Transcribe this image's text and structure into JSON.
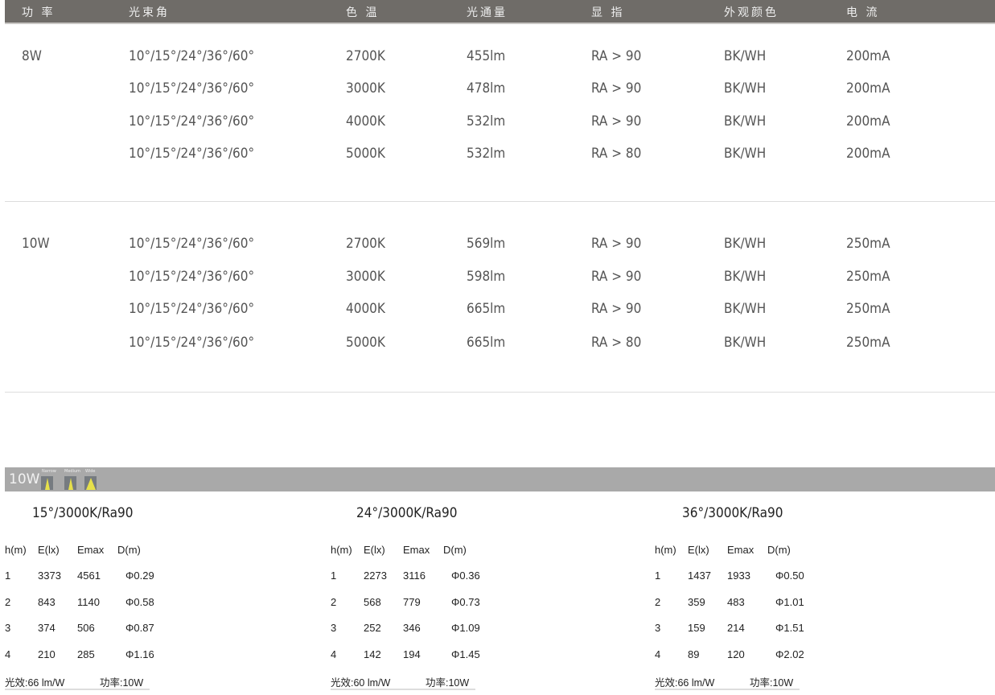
{
  "header": [
    "功 率",
    "光束角",
    "色 温",
    "光通量",
    "显 指",
    "外观颜色",
    "电 流"
  ],
  "groups": [
    {
      "power": "8W",
      "rows": [
        [
          "10°/15°/24°/36°/60°",
          "2700K",
          "455lm",
          "RA > 90",
          "BK/WH",
          "200mA"
        ],
        [
          "10°/15°/24°/36°/60°",
          "3000K",
          "478lm",
          "RA > 90",
          "BK/WH",
          "200mA"
        ],
        [
          "10°/15°/24°/36°/60°",
          "4000K",
          "532lm",
          "RA > 90",
          "BK/WH",
          "200mA"
        ],
        [
          "10°/15°/24°/36°/60°",
          "5000K",
          "532lm",
          "RA > 80",
          "BK/WH",
          "200mA"
        ]
      ]
    },
    {
      "power": "10W",
      "rows": [
        [
          "10°/15°/24°/36°/60°",
          "2700K",
          "569lm",
          "RA > 90",
          "BK/WH",
          "250mA"
        ],
        [
          "10°/15°/24°/36°/60°",
          "3000K",
          "598lm",
          "RA > 90",
          "BK/WH",
          "250mA"
        ],
        [
          "10°/15°/24°/36°/60°",
          "4000K",
          "665lm",
          "RA > 90",
          "BK/WH",
          "250mA"
        ],
        [
          "10°/15°/24°/36°/60°",
          "5000K",
          "665lm",
          "RA > 80",
          "BK/WH",
          "250mA"
        ]
      ]
    }
  ],
  "section": {
    "power": "10W",
    "beams": [
      "Narrow",
      "Medium",
      "Wide"
    ],
    "beam_color": "#e6e04a"
  },
  "blocks": [
    {
      "title": "15°/3000K/Ra90",
      "cols": [
        "h(m)",
        "E(lx)",
        "Emax",
        "D(m)"
      ],
      "rows": [
        [
          "1",
          "3373",
          "4561",
          "Φ0.29"
        ],
        [
          "2",
          "843",
          "1140",
          "Φ0.58"
        ],
        [
          "3",
          "374",
          "506",
          "Φ0.87"
        ],
        [
          "4",
          "210",
          "285",
          "Φ1.16"
        ]
      ],
      "efficacy": "光效:66 lm/W",
      "power": "功率:10W"
    },
    {
      "title": "24°/3000K/Ra90",
      "cols": [
        "h(m)",
        "E(lx)",
        "Emax",
        "D(m)"
      ],
      "rows": [
        [
          "1",
          "2273",
          "3116",
          "Φ0.36"
        ],
        [
          "2",
          "568",
          "779",
          "Φ0.73"
        ],
        [
          "3",
          "252",
          "346",
          "Φ1.09"
        ],
        [
          "4",
          "142",
          "194",
          "Φ1.45"
        ]
      ],
      "efficacy": "光效:60 lm/W",
      "power": "功率:10W"
    },
    {
      "title": "36°/3000K/Ra90",
      "cols": [
        "h(m)",
        "E(lx)",
        "Emax",
        "D(m)"
      ],
      "rows": [
        [
          "1",
          "1437",
          "1933",
          "Φ0.50"
        ],
        [
          "2",
          "359",
          "483",
          "Φ1.01"
        ],
        [
          "3",
          "159",
          "214",
          "Φ1.51"
        ],
        [
          "4",
          "89",
          "120",
          "Φ2.02"
        ]
      ],
      "efficacy": "光效:66 lm/W",
      "power": "功率:10W"
    }
  ]
}
